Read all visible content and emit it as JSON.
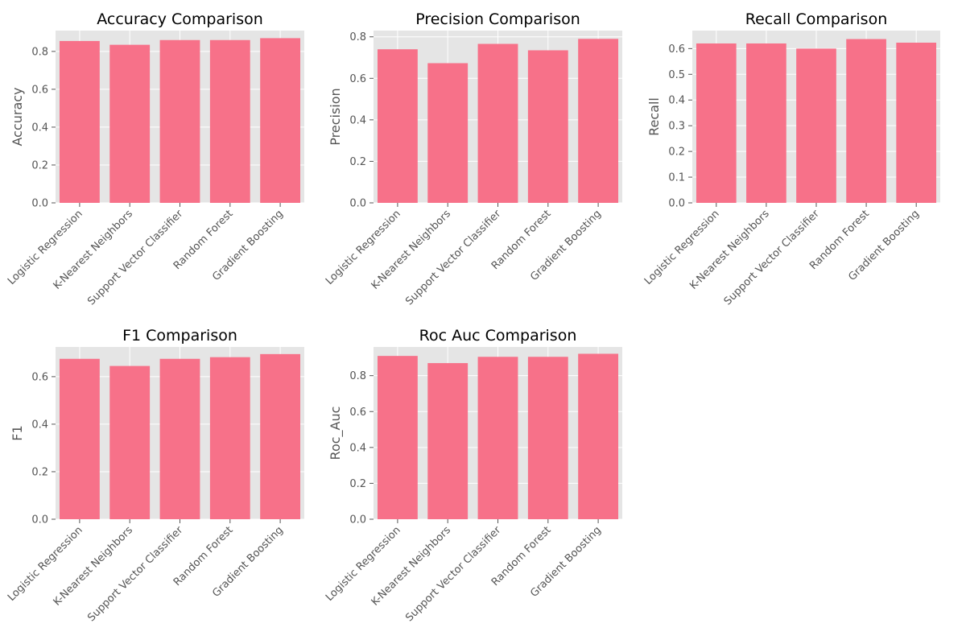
{
  "figure": {
    "bar_color": "#f77189",
    "panel_color": "#e5e5e5",
    "grid_color": "#ffffff"
  },
  "chart_data": [
    {
      "type": "bar",
      "title": "Accuracy Comparison",
      "ylabel": "Accuracy",
      "xlabel": "",
      "categories": [
        "Logistic Regression",
        "K-Nearest Neighbors",
        "Support Vector Classifier",
        "Random Forest",
        "Gradient Boosting"
      ],
      "values": [
        0.855,
        0.835,
        0.86,
        0.86,
        0.87
      ],
      "ylim": [
        0,
        0.91
      ],
      "yticks": [
        0.0,
        0.2,
        0.4,
        0.6,
        0.8
      ],
      "tick_format": 1,
      "grid": true
    },
    {
      "type": "bar",
      "title": "Precision Comparison",
      "ylabel": "Precision",
      "xlabel": "",
      "categories": [
        "Logistic Regression",
        "K-Nearest Neighbors",
        "Support Vector Classifier",
        "Random Forest",
        "Gradient Boosting"
      ],
      "values": [
        0.74,
        0.673,
        0.766,
        0.735,
        0.79
      ],
      "ylim": [
        0,
        0.83
      ],
      "yticks": [
        0.0,
        0.2,
        0.4,
        0.6,
        0.8
      ],
      "tick_format": 1,
      "grid": true
    },
    {
      "type": "bar",
      "title": "Recall Comparison",
      "ylabel": "Recall",
      "xlabel": "",
      "categories": [
        "Logistic Regression",
        "K-Nearest Neighbors",
        "Support Vector Classifier",
        "Random Forest",
        "Gradient Boosting"
      ],
      "values": [
        0.62,
        0.62,
        0.6,
        0.637,
        0.623
      ],
      "ylim": [
        0,
        0.67
      ],
      "yticks": [
        0.0,
        0.1,
        0.2,
        0.3,
        0.4,
        0.5,
        0.6
      ],
      "tick_format": 1,
      "grid": true
    },
    {
      "type": "bar",
      "title": "F1 Comparison",
      "ylabel": "F1",
      "xlabel": "",
      "categories": [
        "Logistic Regression",
        "K-Nearest Neighbors",
        "Support Vector Classifier",
        "Random Forest",
        "Gradient Boosting"
      ],
      "values": [
        0.675,
        0.645,
        0.675,
        0.682,
        0.695
      ],
      "ylim": [
        0,
        0.725
      ],
      "yticks": [
        0.0,
        0.2,
        0.4,
        0.6
      ],
      "tick_format": 1,
      "grid": true
    },
    {
      "type": "bar",
      "title": "Roc Auc Comparison",
      "ylabel": "Roc_Auc",
      "xlabel": "",
      "categories": [
        "Logistic Regression",
        "K-Nearest Neighbors",
        "Support Vector Classifier",
        "Random Forest",
        "Gradient Boosting"
      ],
      "values": [
        0.91,
        0.87,
        0.905,
        0.905,
        0.922
      ],
      "ylim": [
        0,
        0.96
      ],
      "yticks": [
        0.0,
        0.2,
        0.4,
        0.6,
        0.8
      ],
      "tick_format": 1,
      "grid": true
    }
  ]
}
